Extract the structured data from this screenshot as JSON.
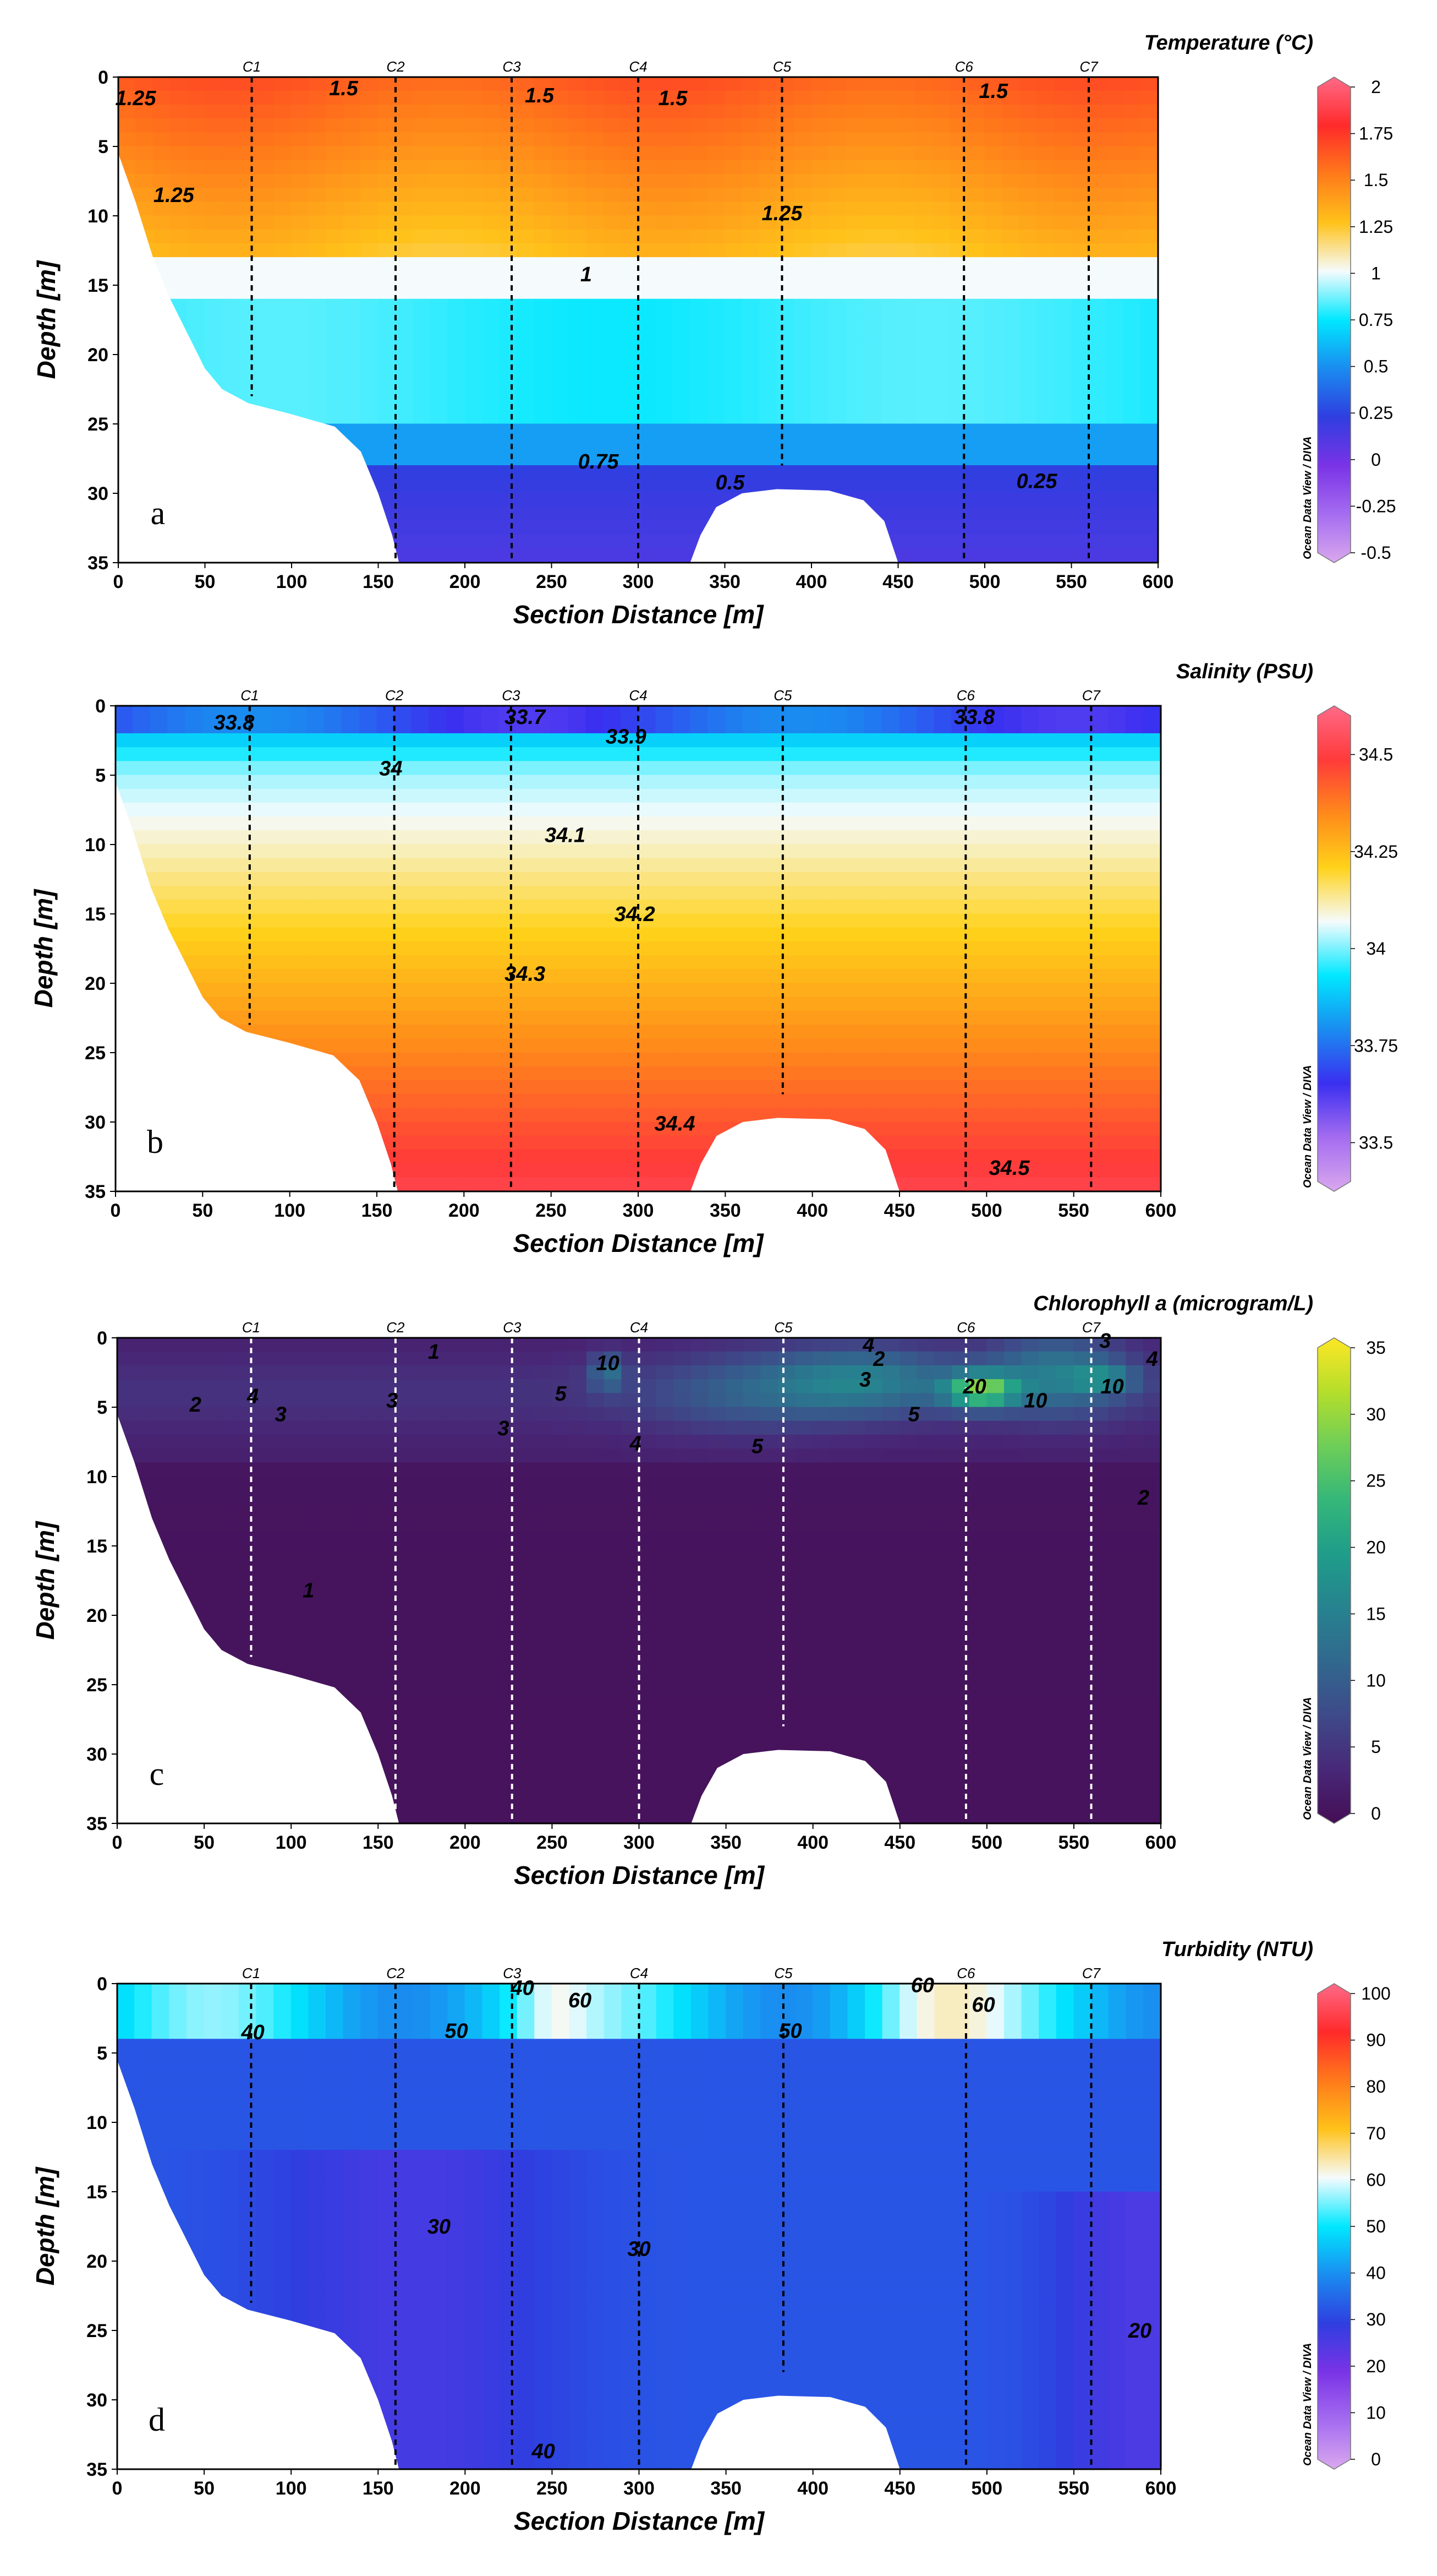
{
  "chart_data": [
    {
      "id": "a",
      "type": "heatmap",
      "panel_label": "a",
      "title": "Temperature (°C)",
      "xlabel": "Section Distance [m]",
      "ylabel": "Depth [m]",
      "xlim": [
        0,
        600
      ],
      "ylim": [
        35,
        0
      ],
      "x_ticks": [
        0,
        50,
        100,
        150,
        200,
        250,
        300,
        350,
        400,
        450,
        500,
        550,
        600
      ],
      "y_ticks": [
        0,
        5,
        10,
        15,
        20,
        25,
        30,
        35
      ],
      "colorbar": {
        "min": -0.5,
        "max": 2,
        "ticks": [
          "2",
          "1.75",
          "1.5",
          "1.25",
          "1",
          "0.75",
          "0.5",
          "0.25",
          "0",
          "-0.25",
          "-0.5"
        ],
        "colors": [
          "#d9a8ee",
          "#a56cf0",
          "#7a33e6",
          "#2f3ee0",
          "#1a8cf0",
          "#00e8ff",
          "#f5fbfd",
          "#ffc21a",
          "#ff7a1a",
          "#ff2a2a",
          "#ff6a88"
        ]
      },
      "stations": [
        {
          "name": "C1",
          "x": 77,
          "bottom": 23
        },
        {
          "name": "C2",
          "x": 160,
          "bottom": 35
        },
        {
          "name": "C3",
          "x": 227,
          "bottom": 35
        },
        {
          "name": "C4",
          "x": 300,
          "bottom": 35
        },
        {
          "name": "C5",
          "x": 383,
          "bottom": 28
        },
        {
          "name": "C6",
          "x": 488,
          "bottom": 35
        },
        {
          "name": "C7",
          "x": 560,
          "bottom": 35
        }
      ],
      "contour_labels": [
        {
          "text": "1.25",
          "x": 10,
          "y": 1.5
        },
        {
          "text": "1.5",
          "x": 130,
          "y": 0.8
        },
        {
          "text": "1.5",
          "x": 243,
          "y": 1.3
        },
        {
          "text": "1.5",
          "x": 320,
          "y": 1.5
        },
        {
          "text": "1.5",
          "x": 505,
          "y": 1.0
        },
        {
          "text": "1.25",
          "x": 32,
          "y": 8.5
        },
        {
          "text": "1.25",
          "x": 383,
          "y": 9.8
        },
        {
          "text": "1",
          "x": 270,
          "y": 14.2
        },
        {
          "text": "0.75",
          "x": 277,
          "y": 27.7
        },
        {
          "text": "0.5",
          "x": 353,
          "y": 29.2
        },
        {
          "text": "0.25",
          "x": 530,
          "y": 29.1
        }
      ],
      "credit": "Ocean Data View / DIVA"
    },
    {
      "id": "b",
      "type": "heatmap",
      "panel_label": "b",
      "title": "Salinity (PSU)",
      "xlabel": "Section Distance [m]",
      "ylabel": "Depth [m]",
      "xlim": [
        0,
        600
      ],
      "ylim": [
        35,
        0
      ],
      "x_ticks": [
        0,
        50,
        100,
        150,
        200,
        250,
        300,
        350,
        400,
        450,
        500,
        550,
        600
      ],
      "y_ticks": [
        0,
        5,
        10,
        15,
        20,
        25,
        30,
        35
      ],
      "colorbar": {
        "min": 33.4,
        "max": 34.6,
        "ticks": [
          "34.5",
          "34.25",
          "34",
          "33.75",
          "33.5"
        ],
        "tick_values": [
          34.5,
          34.25,
          34.0,
          33.75,
          33.5
        ],
        "colors": [
          "#d9a8ee",
          "#a56cf0",
          "#3a2ff0",
          "#1a8cf0",
          "#00e8ff",
          "#f5fbfd",
          "#ffd21a",
          "#ff8a1a",
          "#ff3a3a",
          "#ff6a88"
        ]
      },
      "stations": [
        {
          "name": "C1",
          "x": 77,
          "bottom": 23
        },
        {
          "name": "C2",
          "x": 160,
          "bottom": 35
        },
        {
          "name": "C3",
          "x": 227,
          "bottom": 35
        },
        {
          "name": "C4",
          "x": 300,
          "bottom": 35
        },
        {
          "name": "C5",
          "x": 383,
          "bottom": 28
        },
        {
          "name": "C6",
          "x": 488,
          "bottom": 35
        },
        {
          "name": "C7",
          "x": 560,
          "bottom": 35
        }
      ],
      "contour_labels": [
        {
          "text": "33.8",
          "x": 68,
          "y": 1.2
        },
        {
          "text": "33.7",
          "x": 235,
          "y": 0.8
        },
        {
          "text": "33.9",
          "x": 293,
          "y": 2.2
        },
        {
          "text": "33.8",
          "x": 493,
          "y": 0.8
        },
        {
          "text": "34",
          "x": 158,
          "y": 4.5
        },
        {
          "text": "34.1",
          "x": 258,
          "y": 9.3
        },
        {
          "text": "34.2",
          "x": 298,
          "y": 15.0
        },
        {
          "text": "34.3",
          "x": 235,
          "y": 19.3
        },
        {
          "text": "34.4",
          "x": 321,
          "y": 30.1
        },
        {
          "text": "34.5",
          "x": 513,
          "y": 33.3
        }
      ],
      "credit": "Ocean Data View / DIVA"
    },
    {
      "id": "c",
      "type": "heatmap",
      "panel_label": "c",
      "title": "Chlorophyll a (microgram/L)",
      "xlabel": "Section Distance [m]",
      "ylabel": "Depth [m]",
      "xlim": [
        0,
        600
      ],
      "ylim": [
        35,
        0
      ],
      "x_ticks": [
        0,
        50,
        100,
        150,
        200,
        250,
        300,
        350,
        400,
        450,
        500,
        550,
        600
      ],
      "y_ticks": [
        0,
        5,
        10,
        15,
        20,
        25,
        30,
        35
      ],
      "colorbar": {
        "min": 0,
        "max": 35,
        "ticks": [
          "35",
          "30",
          "25",
          "20",
          "15",
          "10",
          "5",
          "0"
        ],
        "colors": [
          "#450e55",
          "#482878",
          "#3e4a89",
          "#31688e",
          "#26838f",
          "#1f9d8a",
          "#35b779",
          "#6ece58",
          "#b5de2b",
          "#fde725"
        ]
      },
      "stations": [
        {
          "name": "C1",
          "x": 77,
          "bottom": 23
        },
        {
          "name": "C2",
          "x": 160,
          "bottom": 35
        },
        {
          "name": "C3",
          "x": 227,
          "bottom": 35
        },
        {
          "name": "C4",
          "x": 300,
          "bottom": 35
        },
        {
          "name": "C5",
          "x": 383,
          "bottom": 28
        },
        {
          "name": "C6",
          "x": 488,
          "bottom": 35
        },
        {
          "name": "C7",
          "x": 560,
          "bottom": 35
        }
      ],
      "contour_labels": [
        {
          "text": "1",
          "x": 182,
          "y": 1.0
        },
        {
          "text": "10",
          "x": 282,
          "y": 1.8
        },
        {
          "text": "4",
          "x": 432,
          "y": 0.5
        },
        {
          "text": "2",
          "x": 438,
          "y": 1.5
        },
        {
          "text": "3",
          "x": 430,
          "y": 3.0
        },
        {
          "text": "3",
          "x": 568,
          "y": 0.2
        },
        {
          "text": "4",
          "x": 595,
          "y": 1.5
        },
        {
          "text": "2",
          "x": 45,
          "y": 4.8
        },
        {
          "text": "4",
          "x": 78,
          "y": 4.2
        },
        {
          "text": "3",
          "x": 94,
          "y": 5.5
        },
        {
          "text": "3",
          "x": 158,
          "y": 4.5
        },
        {
          "text": "5",
          "x": 255,
          "y": 4.0
        },
        {
          "text": "3",
          "x": 222,
          "y": 6.5
        },
        {
          "text": "20",
          "x": 493,
          "y": 3.5
        },
        {
          "text": "10",
          "x": 528,
          "y": 4.5
        },
        {
          "text": "10",
          "x": 572,
          "y": 3.5
        },
        {
          "text": "5",
          "x": 458,
          "y": 5.5
        },
        {
          "text": "4",
          "x": 298,
          "y": 7.6
        },
        {
          "text": "5",
          "x": 368,
          "y": 7.8
        },
        {
          "text": "2",
          "x": 590,
          "y": 11.5
        },
        {
          "text": "1",
          "x": 110,
          "y": 18.2
        }
      ],
      "credit": "Ocean Data View / DIVA"
    },
    {
      "id": "d",
      "type": "heatmap",
      "panel_label": "d",
      "title": "Turbidity (NTU)",
      "xlabel": "Section Distance [m]",
      "ylabel": "Depth [m]",
      "xlim": [
        0,
        600
      ],
      "ylim": [
        35,
        0
      ],
      "x_ticks": [
        0,
        50,
        100,
        150,
        200,
        250,
        300,
        350,
        400,
        450,
        500,
        550,
        600
      ],
      "y_ticks": [
        0,
        5,
        10,
        15,
        20,
        25,
        30,
        35
      ],
      "colorbar": {
        "min": 0,
        "max": 100,
        "ticks": [
          "100",
          "90",
          "80",
          "70",
          "60",
          "50",
          "40",
          "30",
          "20",
          "10",
          "0"
        ],
        "colors": [
          "#d9a8ee",
          "#a56cf0",
          "#7a33e6",
          "#2f3ee0",
          "#1a8cf0",
          "#00e8ff",
          "#f5fbfd",
          "#ffc21a",
          "#ff7a1a",
          "#ff2a2a",
          "#ff6a88"
        ]
      },
      "stations": [
        {
          "name": "C1",
          "x": 77,
          "bottom": 23
        },
        {
          "name": "C2",
          "x": 160,
          "bottom": 35
        },
        {
          "name": "C3",
          "x": 227,
          "bottom": 35
        },
        {
          "name": "C4",
          "x": 300,
          "bottom": 35
        },
        {
          "name": "C5",
          "x": 383,
          "bottom": 28
        },
        {
          "name": "C6",
          "x": 488,
          "bottom": 35
        },
        {
          "name": "C7",
          "x": 560,
          "bottom": 35
        }
      ],
      "contour_labels": [
        {
          "text": "40",
          "x": 233,
          "y": 0.3
        },
        {
          "text": "60",
          "x": 266,
          "y": 1.2
        },
        {
          "text": "60",
          "x": 463,
          "y": 0.1
        },
        {
          "text": "60",
          "x": 498,
          "y": 1.5
        },
        {
          "text": "40",
          "x": 78,
          "y": 3.5
        },
        {
          "text": "50",
          "x": 195,
          "y": 3.4
        },
        {
          "text": "50",
          "x": 387,
          "y": 3.4
        },
        {
          "text": "30",
          "x": 185,
          "y": 17.5
        },
        {
          "text": "30",
          "x": 300,
          "y": 19.1
        },
        {
          "text": "20",
          "x": 588,
          "y": 25.0
        },
        {
          "text": "40",
          "x": 245,
          "y": 33.7
        }
      ],
      "credit": "Ocean Data View / DIVA"
    }
  ]
}
